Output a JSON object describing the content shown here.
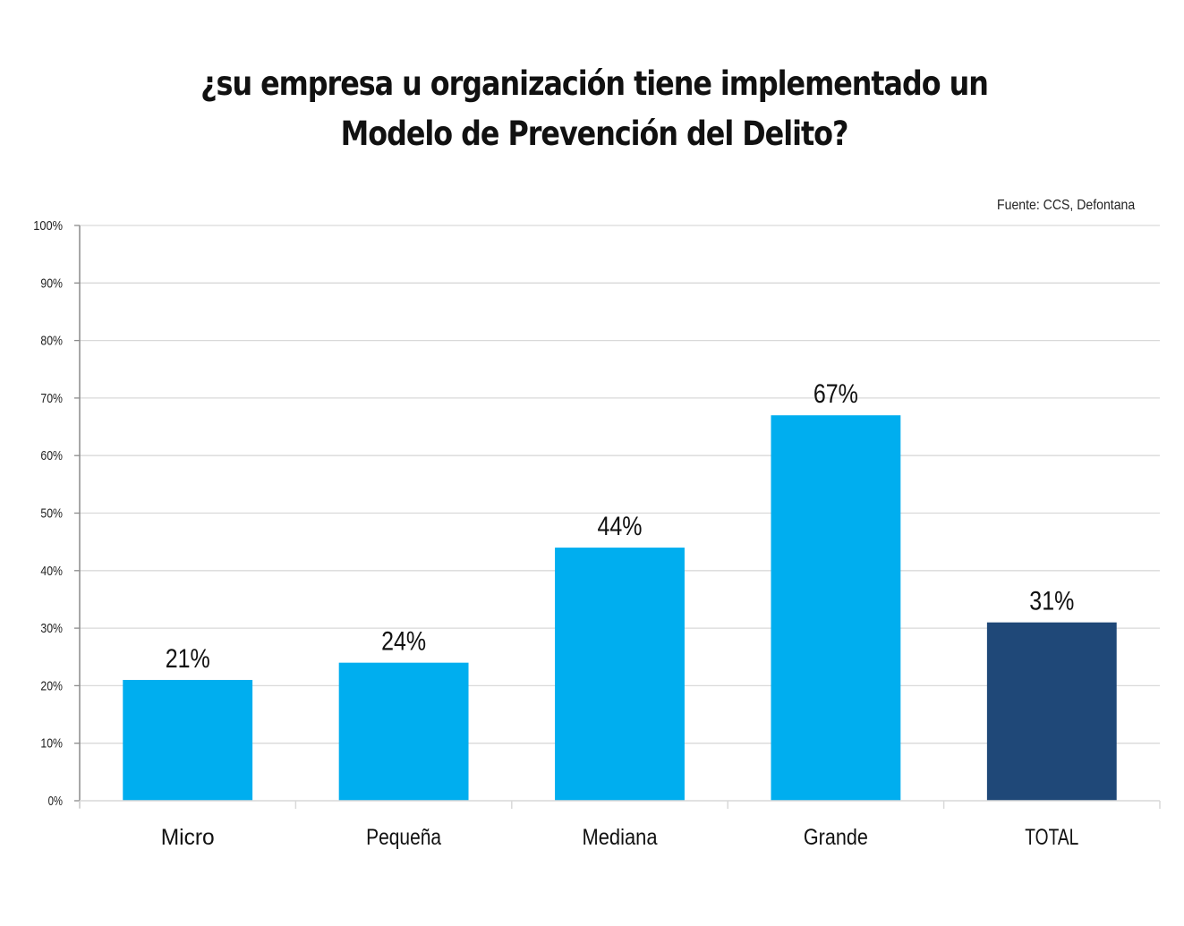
{
  "title": {
    "line1": "¿su empresa u organización tiene implementado un",
    "line2": "Modelo de Prevención del Delito?"
  },
  "source": "Fuente: CCS, Defontana",
  "colors": {
    "bar_default": "#00AEEF",
    "bar_total": "#1F4878",
    "grid": "#D9D9D9",
    "axis": "#8C8C8C"
  },
  "chart_data": {
    "type": "bar",
    "title": "¿su empresa u organización tiene implementado un Modelo de Prevención del Delito?",
    "categories": [
      "Micro",
      "Pequeña",
      "Mediana",
      "Grande",
      "TOTAL"
    ],
    "values": [
      21,
      24,
      44,
      67,
      31
    ],
    "data_labels": [
      "21%",
      "24%",
      "44%",
      "67%",
      "31%"
    ],
    "highlight_index": 4,
    "xlabel": "",
    "ylabel": "",
    "ylim": [
      0,
      100
    ],
    "yticks": [
      0,
      10,
      20,
      30,
      40,
      50,
      60,
      70,
      80,
      90,
      100
    ],
    "ytick_labels": [
      "0%",
      "10%",
      "20%",
      "30%",
      "40%",
      "50%",
      "60%",
      "70%",
      "80%",
      "90%",
      "100%"
    ],
    "grid": true,
    "legend": "none",
    "annotation": "Fuente: CCS, Defontana"
  }
}
